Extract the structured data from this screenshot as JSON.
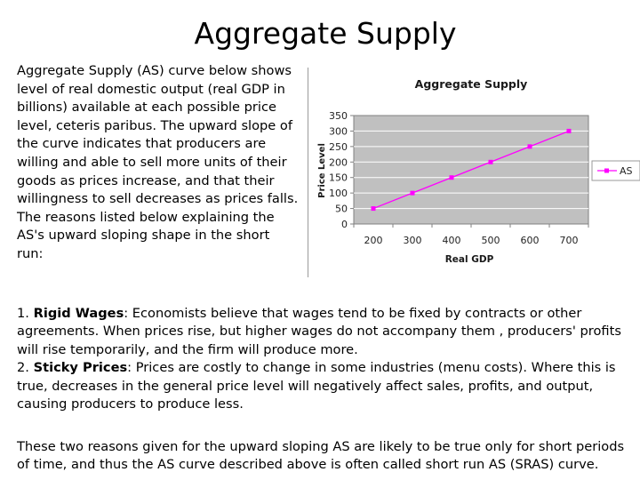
{
  "slide": {
    "title": "Aggregate Supply",
    "intro": "Aggregate Supply (AS) curve below shows level of real domestic output (real GDP in billions) available at each possible price level, ceteris paribus. The upward slope of the curve indicates that producers are willing and able to sell more units of their goods as prices increase, and that their willingness to sell decreases as prices falls. The reasons listed below explaining the AS's upward sloping shape in the short run:",
    "reason1": {
      "number": "1.",
      "term": "Rigid Wages",
      "text": ": Economists believe that wages tend to be fixed by contracts or other agreements. When prices rise, but higher wages do not accompany them , producers' profits will rise temporarily, and the firm will produce more."
    },
    "reason2": {
      "number": "2.",
      "term": "Sticky Prices",
      "text": ": Prices are costly to change in some industries (menu costs). Where this is true, decreases in the general price level will negatively affect sales, profits, and output, causing  producers to produce less."
    },
    "outro": "These two reasons given for the upward sloping AS are likely to be true only for short periods of time, and thus the AS curve described above is often called short run AS (SRAS) curve."
  },
  "chart_data": {
    "type": "line",
    "title": "Aggregate Supply",
    "xlabel": "Real GDP",
    "ylabel": "Price Level",
    "x": [
      200,
      300,
      400,
      500,
      600,
      700
    ],
    "x_tick_labels": [
      "200",
      "300",
      "400",
      "500",
      "600",
      "700"
    ],
    "y_ticks": [
      0,
      50,
      100,
      150,
      200,
      250,
      300,
      350
    ],
    "y_tick_labels": [
      "0",
      "50",
      "100",
      "150",
      "200",
      "250",
      "300",
      "350"
    ],
    "ylim": [
      0,
      350
    ],
    "series": [
      {
        "name": "AS",
        "values": [
          50,
          100,
          150,
          200,
          250,
          300
        ],
        "color": "#ff00ff"
      }
    ],
    "legend": "right",
    "grid": true,
    "plot_background": "#c0c0c0",
    "gridline_color": "#ffffff"
  }
}
